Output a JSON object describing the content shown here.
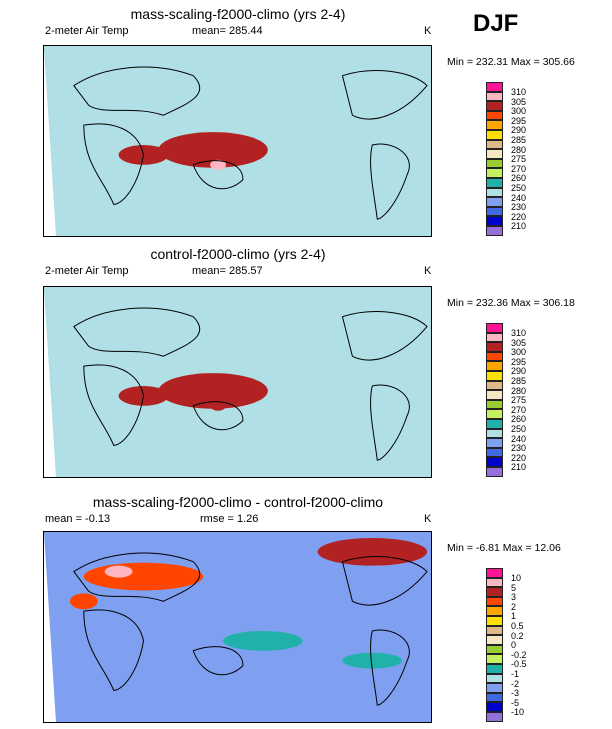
{
  "season": "DJF",
  "chart_data": [
    {
      "type": "heatmap",
      "title": "mass-scaling-f2000-climo (yrs 2-4)",
      "left_label": "2-meter Air Temp",
      "mean_label": "mean= 285.44",
      "units": "K",
      "minmax": "Min = 232.31 Max = 305.66",
      "levels": [
        "310",
        "305",
        "300",
        "295",
        "290",
        "285",
        "280",
        "275",
        "270",
        "260",
        "250",
        "240",
        "230",
        "220",
        "210"
      ]
    },
    {
      "type": "heatmap",
      "title": "control-f2000-climo (yrs 2-4)",
      "left_label": "2-meter Air Temp",
      "mean_label": "mean= 285.57",
      "units": "K",
      "minmax": "Min = 232.36 Max = 306.18",
      "levels": [
        "310",
        "305",
        "300",
        "295",
        "290",
        "285",
        "280",
        "275",
        "270",
        "260",
        "250",
        "240",
        "230",
        "220",
        "210"
      ]
    },
    {
      "type": "heatmap",
      "title": "mass-scaling-f2000-climo - control-f2000-climo",
      "left_label": "mean =  -0.13",
      "mean_label": "rmse =  1.26",
      "units": "K",
      "minmax": "Min =  -6.81 Max =  12.06",
      "levels": [
        "10",
        "5",
        "3",
        "2",
        "1",
        "0.5",
        "0.2",
        "0",
        "-0.2",
        "-0.5",
        "-1",
        "-2",
        "-3",
        "-5",
        "-10"
      ]
    }
  ],
  "palette": [
    "#ff1493",
    "#ffb6c1",
    "#b22222",
    "#ff4500",
    "#ffa500",
    "#ffe000",
    "#deb887",
    "#f5e6c4",
    "#9acd32",
    "#c5f060",
    "#20b2aa",
    "#b0e0e6",
    "#7fa0f0",
    "#4169e1",
    "#0000cd",
    "#9370db"
  ]
}
